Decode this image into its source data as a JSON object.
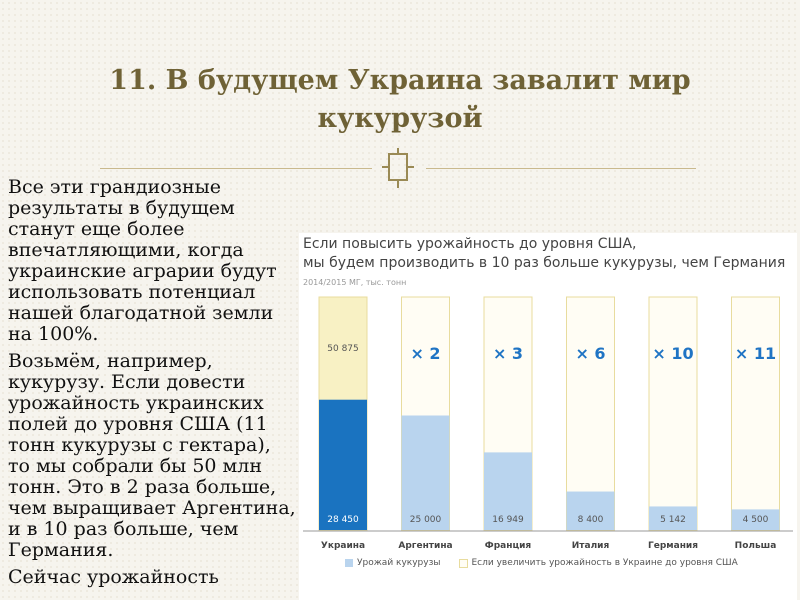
{
  "slide": {
    "title": "11. В будущем Украина завалит мир кукурузой",
    "paragraphs": [
      "Все эти грандиозные результаты в будущем станут еще более впечатляющими, когда украинские аграрии будут использовать потенциал нашей благодатной земли на 100%.",
      "Возьмём, например, кукурузу. Если довести урожайность украинских полей до уровня США (11 тонн кукурузы с гектара), то мы собрали бы 50 млн тонн. Это в 2 раза больше, чем выращивает Аргентина, и в 10 раз больше, чем Германия.",
      "Сейчас урожайность"
    ]
  },
  "colors": {
    "title": "#6f6236",
    "ukraine_actual": "#1a73c0",
    "actual": "#b9d4ee",
    "potential_fill": "#fffdf4",
    "ukraine_potential": "#f8f1c4",
    "potential_border": "#e8dc9e",
    "multiplier_text": "#1f74c4"
  },
  "chart_data": {
    "type": "bar",
    "title": "Если повысить урожайность до уровня США,\nмы будем производить в 10 раз больше кукурузы, чем Германия",
    "subtitle": "2014/2015 МГ, тыс. тонн",
    "categories": [
      "Украина",
      "Аргентина",
      "Франция",
      "Италия",
      "Германия",
      "Польша"
    ],
    "series": [
      {
        "name": "Урожай кукурузы",
        "values": [
          28450,
          25000,
          16949,
          8400,
          5142,
          4500
        ]
      },
      {
        "name": "Если увеличить урожайность в Украине до уровня США",
        "values": [
          50875,
          50875,
          50875,
          50875,
          50875,
          50875
        ]
      }
    ],
    "value_labels": [
      "28 450",
      "25 000",
      "16 949",
      "8 400",
      "5 142",
      "4 500"
    ],
    "top_labels": [
      "50 875",
      "× 2",
      "× 3",
      "× 6",
      "× 10",
      "× 11"
    ],
    "ylim": [
      0,
      50875
    ],
    "grid": false,
    "legend": "bottom"
  }
}
